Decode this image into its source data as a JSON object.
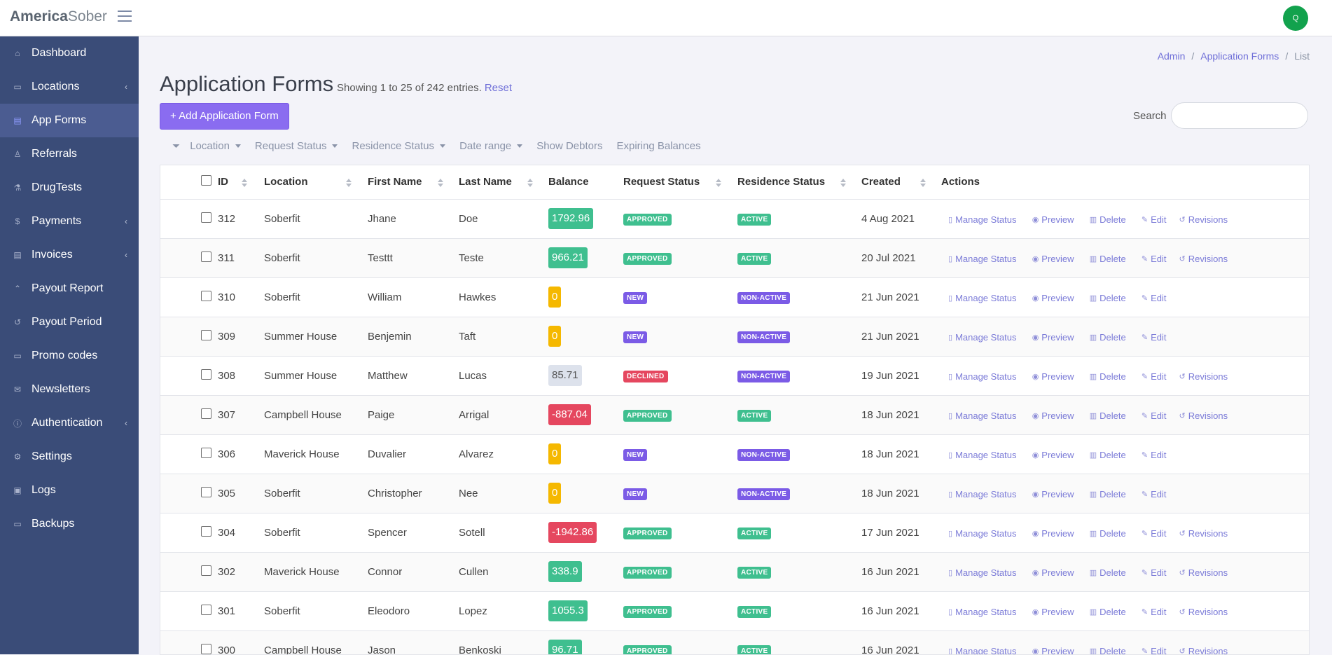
{
  "brand": {
    "bold": "America",
    "light": "Sober"
  },
  "user": {
    "avatar_initial": "Q"
  },
  "sidebar": {
    "items": [
      {
        "label": "Dashboard",
        "icon": "home-icon",
        "has_children": false,
        "active": false
      },
      {
        "label": "Locations",
        "icon": "building-icon",
        "has_children": true,
        "active": false
      },
      {
        "label": "App Forms",
        "icon": "document-icon",
        "has_children": false,
        "active": true
      },
      {
        "label": "Referrals",
        "icon": "referral-icon",
        "has_children": false,
        "active": false
      },
      {
        "label": "DrugTests",
        "icon": "test-icon",
        "has_children": false,
        "active": false
      },
      {
        "label": "Payments",
        "icon": "dollar-icon",
        "has_children": true,
        "active": false
      },
      {
        "label": "Invoices",
        "icon": "invoice-icon",
        "has_children": true,
        "active": false
      },
      {
        "label": "Payout Report",
        "icon": "report-icon",
        "has_children": false,
        "active": false
      },
      {
        "label": "Payout Period",
        "icon": "history-icon",
        "has_children": false,
        "active": false
      },
      {
        "label": "Promo codes",
        "icon": "ticket-icon",
        "has_children": false,
        "active": false
      },
      {
        "label": "Newsletters",
        "icon": "mail-icon",
        "has_children": false,
        "active": false
      },
      {
        "label": "Authentication",
        "icon": "lock-icon",
        "has_children": true,
        "active": false
      },
      {
        "label": "Settings",
        "icon": "gear-icon",
        "has_children": false,
        "active": false
      },
      {
        "label": "Logs",
        "icon": "log-icon",
        "has_children": false,
        "active": false
      },
      {
        "label": "Backups",
        "icon": "drive-icon",
        "has_children": false,
        "active": false
      }
    ]
  },
  "breadcrumb": {
    "items": [
      "Admin",
      "Application Forms",
      "List"
    ]
  },
  "header": {
    "title": "Application Forms",
    "showing": "Showing 1 to 25 of 242 entries.",
    "reset": "Reset",
    "add_button": "Add Application Form",
    "search_label": "Search",
    "search_value": ""
  },
  "filters": [
    "Location",
    "Request Status",
    "Residence Status",
    "Date range",
    "Show Debtors",
    "Expiring Balances"
  ],
  "table": {
    "columns": [
      "ID",
      "Location",
      "First Name",
      "Last Name",
      "Balance",
      "Request Status",
      "Residence Status",
      "Created",
      "Actions"
    ],
    "rows": [
      {
        "id": "312",
        "location": "Soberfit",
        "first": "Jhane",
        "last": "Doe",
        "balance": "1792.96",
        "balance_kind": "pos",
        "request": "APPROVED",
        "residence": "ACTIVE",
        "created": "4 Aug 2021",
        "revisions": true
      },
      {
        "id": "311",
        "location": "Soberfit",
        "first": "Testtt",
        "last": "Teste",
        "balance": "966.21",
        "balance_kind": "pos",
        "request": "APPROVED",
        "residence": "ACTIVE",
        "created": "20 Jul 2021",
        "revisions": true
      },
      {
        "id": "310",
        "location": "Soberfit",
        "first": "William",
        "last": "Hawkes",
        "balance": "0",
        "balance_kind": "zero",
        "request": "NEW",
        "residence": "NON-ACTIVE",
        "created": "21 Jun 2021",
        "revisions": false
      },
      {
        "id": "309",
        "location": "Summer House",
        "first": "Benjemin",
        "last": "Taft",
        "balance": "0",
        "balance_kind": "zero",
        "request": "NEW",
        "residence": "NON-ACTIVE",
        "created": "21 Jun 2021",
        "revisions": false
      },
      {
        "id": "308",
        "location": "Summer House",
        "first": "Matthew",
        "last": "Lucas",
        "balance": "85.71",
        "balance_kind": "neutral",
        "request": "DECLINED",
        "residence": "NON-ACTIVE",
        "created": "19 Jun 2021",
        "revisions": true
      },
      {
        "id": "307",
        "location": "Campbell House",
        "first": "Paige",
        "last": "Arrigal",
        "balance": "-887.04",
        "balance_kind": "neg",
        "request": "APPROVED",
        "residence": "ACTIVE",
        "created": "18 Jun 2021",
        "revisions": true
      },
      {
        "id": "306",
        "location": "Maverick House",
        "first": "Duvalier",
        "last": "Alvarez",
        "balance": "0",
        "balance_kind": "zero",
        "request": "NEW",
        "residence": "NON-ACTIVE",
        "created": "18 Jun 2021",
        "revisions": false
      },
      {
        "id": "305",
        "location": "Soberfit",
        "first": "Christopher",
        "last": "Nee",
        "balance": "0",
        "balance_kind": "zero",
        "request": "NEW",
        "residence": "NON-ACTIVE",
        "created": "18 Jun 2021",
        "revisions": false
      },
      {
        "id": "304",
        "location": "Soberfit",
        "first": "Spencer",
        "last": "Sotell",
        "balance": "-1942.86",
        "balance_kind": "neg",
        "request": "APPROVED",
        "residence": "ACTIVE",
        "created": "17 Jun 2021",
        "revisions": true
      },
      {
        "id": "302",
        "location": "Maverick House",
        "first": "Connor",
        "last": "Cullen",
        "balance": "338.9",
        "balance_kind": "pos",
        "request": "APPROVED",
        "residence": "ACTIVE",
        "created": "16 Jun 2021",
        "revisions": true
      },
      {
        "id": "301",
        "location": "Soberfit",
        "first": "Eleodoro",
        "last": "Lopez",
        "balance": "1055.3",
        "balance_kind": "pos",
        "request": "APPROVED",
        "residence": "ACTIVE",
        "created": "16 Jun 2021",
        "revisions": true
      },
      {
        "id": "300",
        "location": "Campbell House",
        "first": "Jason",
        "last": "Benkoski",
        "balance": "96.71",
        "balance_kind": "pos",
        "request": "APPROVED",
        "residence": "ACTIVE",
        "created": "16 Jun 2021",
        "revisions": true
      }
    ],
    "actions": {
      "manage": "Manage Status",
      "preview": "Preview",
      "delete": "Delete",
      "edit": "Edit",
      "revisions": "Revisions"
    }
  },
  "colors": {
    "sidebar_bg": "#3a4c78",
    "sidebar_active": "#4b5c91",
    "accent": "#8a6cf0",
    "positive": "#3fbf8f",
    "zero": "#f5b800",
    "negative": "#e5475f",
    "badge_new": "#7b5be6"
  }
}
